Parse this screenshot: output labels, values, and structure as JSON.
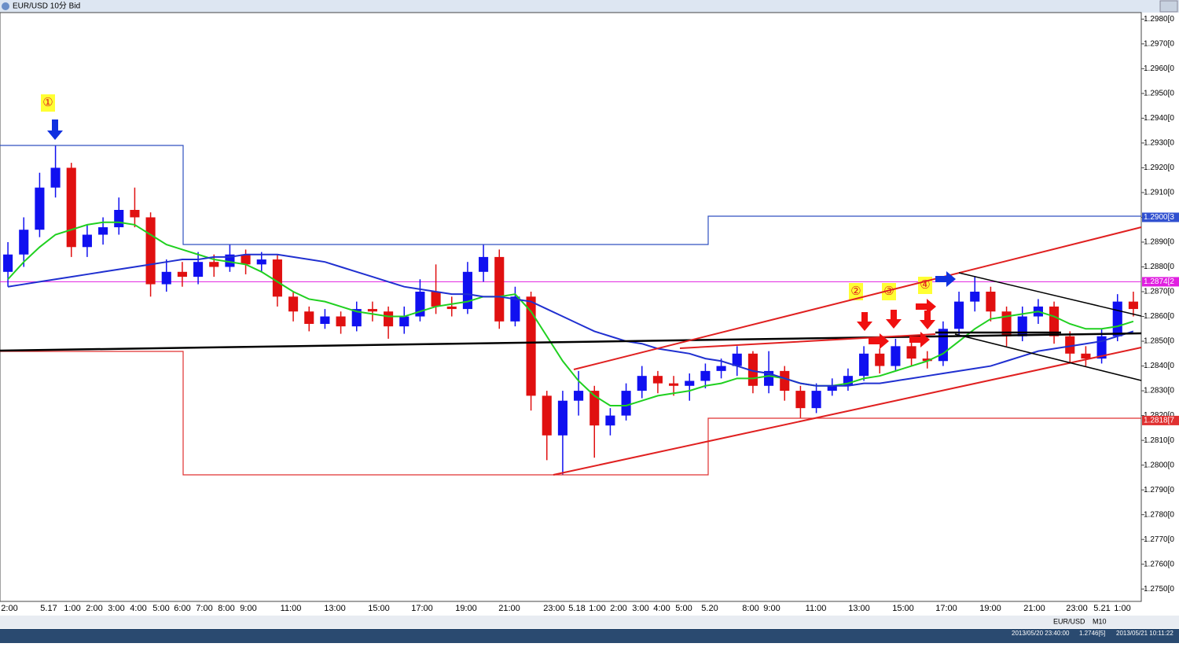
{
  "window_title": "EUR/USD 10分 Bid",
  "chart_data": {
    "type": "candlestick",
    "up_color": "#1010f0",
    "down_color": "#e01010",
    "ylim": [
      1.2745,
      1.2982
    ],
    "yticks": [
      {
        "value": 1.275,
        "label": "1.2750[0"
      },
      {
        "value": 1.276,
        "label": "1.2760[0"
      },
      {
        "value": 1.277,
        "label": "1.2770[0"
      },
      {
        "value": 1.278,
        "label": "1.2780[0"
      },
      {
        "value": 1.279,
        "label": "1.2790[0"
      },
      {
        "value": 1.28,
        "label": "1.2800[0"
      },
      {
        "value": 1.281,
        "label": "1.2810[0"
      },
      {
        "value": 1.282,
        "label": "1.2820[0"
      },
      {
        "value": 1.283,
        "label": "1.2830[0"
      },
      {
        "value": 1.284,
        "label": "1.2840[0"
      },
      {
        "value": 1.285,
        "label": "1.2850[0"
      },
      {
        "value": 1.286,
        "label": "1.2860[0"
      },
      {
        "value": 1.287,
        "label": "1.2870[0"
      },
      {
        "value": 1.288,
        "label": "1.2880[0"
      },
      {
        "value": 1.289,
        "label": "1.2890[0"
      },
      {
        "value": 1.29,
        "label": "1.2900[0"
      },
      {
        "value": 1.291,
        "label": "1.2910[0"
      },
      {
        "value": 1.292,
        "label": "1.2920[0"
      },
      {
        "value": 1.293,
        "label": "1.2930[0"
      },
      {
        "value": 1.294,
        "label": "1.2940[0"
      },
      {
        "value": 1.295,
        "label": "1.2950[0"
      },
      {
        "value": 1.296,
        "label": "1.2960[0"
      },
      {
        "value": 1.297,
        "label": "1.2970[0"
      },
      {
        "value": 1.298,
        "label": "1.2980[0"
      }
    ],
    "xlabels": [
      "2:00",
      "5.17",
      "1:00",
      "2:00",
      "3:00",
      "4:00",
      "5:00",
      "6:00",
      "7:00",
      "8:00",
      "9:00",
      "11:00",
      "13:00",
      "15:00",
      "17:00",
      "19:00",
      "21:00",
      "23:00",
      "5.18",
      "1:00",
      "2:00",
      "3:00",
      "4:00",
      "5:00",
      "5.20",
      "8:00",
      "9:00",
      "11:00",
      "13:00",
      "15:00",
      "17:00",
      "19:00",
      "21:00",
      "23:00",
      "5.21",
      "1:00"
    ],
    "open": [
      1.2878,
      1.2885,
      1.2895,
      1.2912,
      1.292,
      1.2888,
      1.2893,
      1.2896,
      1.2903,
      1.29,
      1.2873,
      1.2878,
      1.2876,
      1.2882,
      1.288,
      1.2885,
      1.2881,
      1.2883,
      1.2868,
      1.2862,
      1.2857,
      1.286,
      1.2856,
      1.2863,
      1.2862,
      1.2856,
      1.286,
      1.287,
      1.2864,
      1.2863,
      1.2878,
      1.2884,
      1.2858,
      1.2868,
      1.2828,
      1.2812,
      1.2826,
      1.283,
      1.2816,
      1.282,
      1.283,
      1.2836,
      1.2833,
      1.2832,
      1.2834,
      1.2838,
      1.284,
      1.2845,
      1.2832,
      1.2838,
      1.283,
      1.2823,
      1.283,
      1.2832,
      1.2836,
      1.2845,
      1.284,
      1.2848,
      1.2843,
      1.2842,
      1.2855,
      1.2866,
      1.287,
      1.2862,
      1.2852,
      1.286,
      1.2864,
      1.2852,
      1.2845,
      1.2843,
      1.2852,
      1.2866
    ],
    "high": [
      1.289,
      1.29,
      1.2918,
      1.2929,
      1.2922,
      1.2897,
      1.29,
      1.2908,
      1.2912,
      1.2902,
      1.2883,
      1.2882,
      1.2886,
      1.2885,
      1.2889,
      1.2887,
      1.2886,
      1.2885,
      1.287,
      1.2864,
      1.2863,
      1.2862,
      1.2866,
      1.2866,
      1.2864,
      1.2864,
      1.2875,
      1.2881,
      1.2868,
      1.2882,
      1.2889,
      1.2887,
      1.2872,
      1.287,
      1.283,
      1.283,
      1.2838,
      1.2832,
      1.2823,
      1.2833,
      1.284,
      1.2838,
      1.2836,
      1.2837,
      1.2841,
      1.2843,
      1.2848,
      1.2846,
      1.2846,
      1.284,
      1.2832,
      1.2833,
      1.2835,
      1.2839,
      1.2848,
      1.2847,
      1.2851,
      1.285,
      1.2846,
      1.2858,
      1.287,
      1.2876,
      1.2872,
      1.2864,
      1.2864,
      1.2867,
      1.2866,
      1.2854,
      1.2848,
      1.2855,
      1.2869,
      1.287
    ],
    "low": [
      1.2872,
      1.288,
      1.2892,
      1.2908,
      1.2884,
      1.2884,
      1.2889,
      1.2893,
      1.2896,
      1.2868,
      1.287,
      1.2872,
      1.2873,
      1.2876,
      1.2878,
      1.2877,
      1.2878,
      1.2864,
      1.2858,
      1.2854,
      1.2855,
      1.2853,
      1.2854,
      1.2858,
      1.2851,
      1.2853,
      1.2858,
      1.2861,
      1.286,
      1.2861,
      1.2874,
      1.2855,
      1.2856,
      1.2822,
      1.2802,
      1.2796,
      1.282,
      1.2803,
      1.2812,
      1.2818,
      1.2827,
      1.2829,
      1.2828,
      1.2826,
      1.2831,
      1.2835,
      1.2836,
      1.2829,
      1.2829,
      1.2826,
      1.2819,
      1.2821,
      1.2828,
      1.283,
      1.2834,
      1.2837,
      1.2838,
      1.284,
      1.2839,
      1.284,
      1.2852,
      1.2862,
      1.2858,
      1.2848,
      1.285,
      1.2857,
      1.2849,
      1.2841,
      1.284,
      1.2841,
      1.285,
      1.286
    ],
    "close": [
      1.2885,
      1.2895,
      1.2912,
      1.292,
      1.2888,
      1.2893,
      1.2896,
      1.2903,
      1.29,
      1.2873,
      1.2878,
      1.2876,
      1.2882,
      1.288,
      1.2885,
      1.2881,
      1.2883,
      1.2868,
      1.2862,
      1.2857,
      1.286,
      1.2856,
      1.2863,
      1.2862,
      1.2856,
      1.286,
      1.287,
      1.2864,
      1.2863,
      1.2878,
      1.2884,
      1.2858,
      1.2868,
      1.2828,
      1.2812,
      1.2826,
      1.283,
      1.2816,
      1.282,
      1.283,
      1.2836,
      1.2833,
      1.2832,
      1.2834,
      1.2838,
      1.284,
      1.2845,
      1.2832,
      1.2838,
      1.283,
      1.2823,
      1.283,
      1.2832,
      1.2836,
      1.2845,
      1.284,
      1.2848,
      1.2843,
      1.2842,
      1.2855,
      1.2866,
      1.287,
      1.2862,
      1.2852,
      1.286,
      1.2864,
      1.2852,
      1.2845,
      1.2843,
      1.2852,
      1.2866,
      1.2863
    ],
    "series": [
      {
        "color": "#20d020",
        "values": [
          1.2875,
          1.2882,
          1.2888,
          1.2893,
          1.2895,
          1.2897,
          1.2898,
          1.2898,
          1.2897,
          1.2893,
          1.2889,
          1.2887,
          1.2885,
          1.2883,
          1.2882,
          1.2881,
          1.2878,
          1.2874,
          1.287,
          1.2867,
          1.2866,
          1.2864,
          1.2862,
          1.2861,
          1.286,
          1.286,
          1.2862,
          1.2864,
          1.2865,
          1.2866,
          1.2868,
          1.2868,
          1.2869,
          1.2862,
          1.2852,
          1.2842,
          1.2834,
          1.2828,
          1.2824,
          1.2824,
          1.2826,
          1.2828,
          1.2829,
          1.283,
          1.2832,
          1.2833,
          1.2835,
          1.2835,
          1.2836,
          1.2835,
          1.2833,
          1.2832,
          1.2832,
          1.2833,
          1.2835,
          1.2836,
          1.2838,
          1.284,
          1.2842,
          1.2845,
          1.285,
          1.2855,
          1.2859,
          1.286,
          1.2861,
          1.2862,
          1.286,
          1.2857,
          1.2855,
          1.2855,
          1.2856,
          1.2858
        ]
      },
      {
        "color": "#2030d0",
        "values": [
          1.2872,
          1.2873,
          1.2874,
          1.2875,
          1.2876,
          1.2877,
          1.2878,
          1.2879,
          1.288,
          1.2881,
          1.2882,
          1.2883,
          1.2883,
          1.2884,
          1.2884,
          1.2885,
          1.2885,
          1.2885,
          1.2884,
          1.2883,
          1.2882,
          1.288,
          1.2878,
          1.2876,
          1.2874,
          1.2872,
          1.2871,
          1.287,
          1.2869,
          1.2869,
          1.2868,
          1.2868,
          1.2867,
          1.2866,
          1.2863,
          1.286,
          1.2857,
          1.2854,
          1.2852,
          1.285,
          1.2849,
          1.2847,
          1.2846,
          1.2845,
          1.2843,
          1.2842,
          1.284,
          1.2838,
          1.2837,
          1.2835,
          1.2833,
          1.2832,
          1.2832,
          1.2832,
          1.2833,
          1.2833,
          1.2834,
          1.2835,
          1.2836,
          1.2837,
          1.2838,
          1.2839,
          1.284,
          1.2842,
          1.2844,
          1.2846,
          1.2847,
          1.2848,
          1.2849,
          1.285,
          1.2852,
          1.2854
        ]
      }
    ],
    "levels": [
      {
        "value": 1.29,
        "label": "1.2900[3",
        "color": "#3050d0",
        "line": false
      },
      {
        "value": 1.2874,
        "label": "1.2874[2",
        "color": "#e020e0",
        "line": true
      },
      {
        "value": 1.2818,
        "label": "1.2818[7",
        "color": "#e03030",
        "line": false
      }
    ],
    "annotations": [
      "①",
      "②",
      "③",
      "④"
    ]
  },
  "status": {
    "symbol": "EUR/USD",
    "timeframe": "M10",
    "time": "2013/05/20 23:40:00",
    "price": "1.2746[5]",
    "now": "2013/05/21 10:11:22"
  }
}
